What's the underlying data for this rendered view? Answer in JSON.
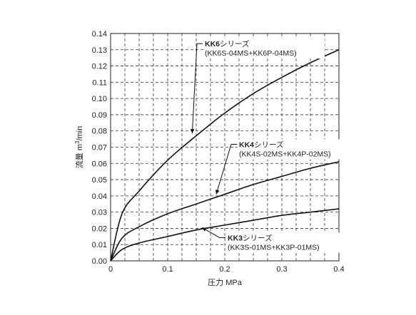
{
  "chart_data": {
    "type": "line",
    "xlabel": "圧力 MPa",
    "ylabel_main": "流量 m",
    "ylabel_sup": "3",
    "ylabel_tail": "/min",
    "xlim": [
      0,
      0.4
    ],
    "ylim": [
      0,
      0.14
    ],
    "x_ticks": [
      "0",
      "0.1",
      "0.2",
      "0.3",
      "0.4"
    ],
    "x_tick_values": [
      0,
      0.1,
      0.2,
      0.3,
      0.4
    ],
    "y_ticks": [
      "0.00",
      "0.01",
      "0.02",
      "0.03",
      "0.04",
      "0.05",
      "0.06",
      "0.07",
      "0.08",
      "0.09",
      "0.10",
      "0.11",
      "0.12",
      "0.13",
      "0.14"
    ],
    "y_tick_values": [
      0,
      0.01,
      0.02,
      0.03,
      0.04,
      0.05,
      0.06,
      0.07,
      0.08,
      0.09,
      0.1,
      0.11,
      0.12,
      0.13,
      0.14
    ],
    "x_minor_step": 0.025,
    "grid": true,
    "series": [
      {
        "name": "KK6シリーズ",
        "name_bold": "KK6",
        "name_suffix": "シリーズ",
        "subtitle": "(KK6S-04MS+KK6P-04MS)",
        "x": [
          0,
          0.02,
          0.05,
          0.1,
          0.15,
          0.2,
          0.25,
          0.3,
          0.35,
          0.4
        ],
        "y": [
          0,
          0.029,
          0.043,
          0.062,
          0.077,
          0.091,
          0.103,
          0.113,
          0.122,
          0.13
        ]
      },
      {
        "name": "KK4シリーズ",
        "name_bold": "KK4",
        "name_suffix": "シリーズ",
        "subtitle": "(KK4S-02MS+KK4P-02MS)",
        "x": [
          0,
          0.02,
          0.05,
          0.1,
          0.15,
          0.2,
          0.25,
          0.3,
          0.35,
          0.4
        ],
        "y": [
          0,
          0.014,
          0.021,
          0.029,
          0.035,
          0.041,
          0.047,
          0.052,
          0.057,
          0.061
        ]
      },
      {
        "name": "KK3シリーズ",
        "name_bold": "KK3",
        "name_suffix": "シリーズ",
        "subtitle": "(KK3S-01MS+KK3P-01MS)",
        "x": [
          0,
          0.02,
          0.05,
          0.1,
          0.15,
          0.2,
          0.25,
          0.3,
          0.35,
          0.4
        ],
        "y": [
          0,
          0.007,
          0.011,
          0.015,
          0.019,
          0.022,
          0.025,
          0.028,
          0.03,
          0.032
        ]
      }
    ],
    "annotations": [
      {
        "series": 0,
        "label_x": 0.165,
        "label_y": 0.132,
        "arrow_to_x": 0.143,
        "arrow_to_y": 0.0785
      },
      {
        "series": 1,
        "label_x": 0.225,
        "label_y": 0.07,
        "arrow_to_x": 0.185,
        "arrow_to_y": 0.041
      },
      {
        "series": 2,
        "label_x": 0.205,
        "label_y": 0.0125,
        "arrow_to_x": 0.16,
        "arrow_to_y": 0.0205
      }
    ]
  }
}
